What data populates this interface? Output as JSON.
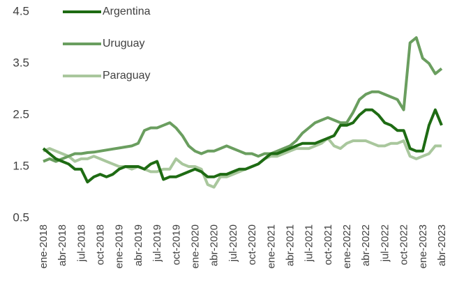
{
  "chart_data": {
    "type": "line",
    "categories": [
      "ene-2018",
      null,
      null,
      "abr-2018",
      null,
      null,
      "jul-2018",
      null,
      null,
      "oct-2018",
      null,
      null,
      "ene-2019",
      null,
      null,
      "abr-2019",
      null,
      null,
      "jul-2019",
      null,
      null,
      "oct-2019",
      null,
      null,
      "ene-2020",
      null,
      null,
      "abr-2020",
      null,
      null,
      "jul-2020",
      null,
      null,
      "oct-2020",
      null,
      null,
      "ene-2021",
      null,
      null,
      "abr-2021",
      null,
      null,
      "jul-2021",
      null,
      null,
      "oct-2021",
      null,
      null,
      "ene-2022",
      null,
      null,
      "abr-2022",
      null,
      null,
      "jul-2022",
      null,
      null,
      "oct-2022",
      null,
      null,
      "ene-2023",
      null,
      null,
      "abr-2023"
    ],
    "series": [
      {
        "name": "Argentina",
        "color": "#1e6b13",
        "values": [
          1.85,
          1.75,
          1.65,
          1.6,
          1.55,
          1.45,
          1.45,
          1.2,
          1.3,
          1.35,
          1.3,
          1.35,
          1.45,
          1.5,
          1.5,
          1.5,
          1.45,
          1.55,
          1.6,
          1.25,
          1.3,
          1.3,
          1.35,
          1.4,
          1.45,
          1.4,
          1.3,
          1.3,
          1.35,
          1.35,
          1.4,
          1.45,
          1.45,
          1.5,
          1.55,
          1.65,
          1.75,
          1.75,
          1.8,
          1.85,
          1.9,
          1.95,
          1.95,
          1.95,
          2.0,
          2.05,
          2.1,
          2.3,
          2.3,
          2.35,
          2.5,
          2.6,
          2.6,
          2.5,
          2.35,
          2.3,
          2.2,
          2.2,
          1.85,
          1.8,
          1.8,
          2.3,
          2.6,
          2.3
        ]
      },
      {
        "name": "Uruguay",
        "color": "#6a9e5f",
        "values": [
          1.6,
          1.65,
          1.6,
          1.65,
          1.7,
          1.75,
          1.75,
          1.77,
          1.78,
          1.8,
          1.82,
          1.84,
          1.86,
          1.88,
          1.9,
          1.95,
          2.2,
          2.25,
          2.25,
          2.3,
          2.35,
          2.25,
          2.1,
          1.9,
          1.8,
          1.75,
          1.8,
          1.8,
          1.85,
          1.9,
          1.85,
          1.8,
          1.75,
          1.75,
          1.7,
          1.75,
          1.75,
          1.8,
          1.85,
          1.9,
          2.0,
          2.15,
          2.25,
          2.35,
          2.4,
          2.45,
          2.4,
          2.35,
          2.35,
          2.55,
          2.8,
          2.9,
          2.95,
          2.95,
          2.9,
          2.85,
          2.8,
          2.6,
          3.9,
          4.0,
          3.6,
          3.5,
          3.3,
          3.4
        ]
      },
      {
        "name": "Paraguay",
        "color": "#a9c79d",
        "values": [
          1.8,
          1.85,
          1.8,
          1.75,
          1.7,
          1.6,
          1.65,
          1.65,
          1.7,
          1.65,
          1.6,
          1.55,
          1.5,
          1.5,
          1.45,
          1.5,
          1.45,
          1.4,
          1.4,
          1.45,
          1.45,
          1.65,
          1.55,
          1.5,
          1.5,
          1.45,
          1.15,
          1.1,
          1.3,
          1.3,
          1.35,
          1.4,
          1.45,
          1.5,
          1.55,
          1.65,
          1.7,
          1.7,
          1.75,
          1.8,
          1.85,
          1.85,
          1.85,
          1.9,
          1.95,
          2.05,
          1.9,
          1.85,
          1.95,
          2.0,
          2.0,
          2.0,
          1.95,
          1.9,
          1.9,
          1.95,
          1.95,
          2.0,
          1.7,
          1.65,
          1.7,
          1.75,
          1.9,
          1.9
        ]
      }
    ],
    "ylim": [
      0.5,
      4.5
    ],
    "yticks": [
      0.5,
      1.5,
      2.5,
      3.5,
      4.5
    ]
  }
}
